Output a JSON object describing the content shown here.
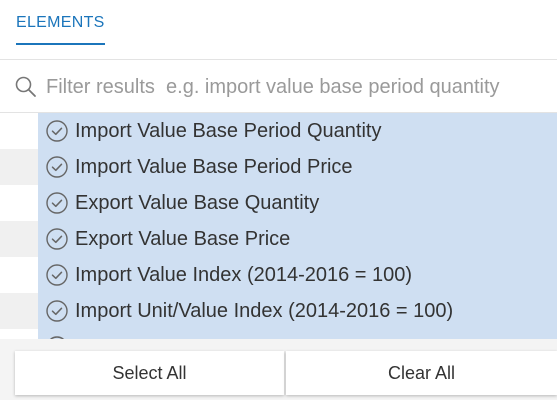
{
  "tabs": [
    {
      "label": "ELEMENTS",
      "active": true
    }
  ],
  "filter": {
    "placeholder": "Filter results  e.g. import value base period quantity",
    "value": "",
    "icon": "search-icon"
  },
  "colors": {
    "accent": "#1b75bb",
    "selected_row": "#cfdff2",
    "alt_gutter": "#f0f0f0"
  },
  "items": [
    {
      "label": "Import Value Base Period Quantity",
      "selected": true
    },
    {
      "label": "Import Value Base Period Price",
      "selected": true
    },
    {
      "label": "Export Value Base Quantity",
      "selected": true
    },
    {
      "label": "Export Value Base Price",
      "selected": true
    },
    {
      "label": "Import Value Index (2014-2016 = 100)",
      "selected": true
    },
    {
      "label": "Import Unit/Value Index (2014-2016 = 100)",
      "selected": true
    }
  ],
  "footer": {
    "select_all_label": "Select All",
    "clear_all_label": "Clear All"
  }
}
